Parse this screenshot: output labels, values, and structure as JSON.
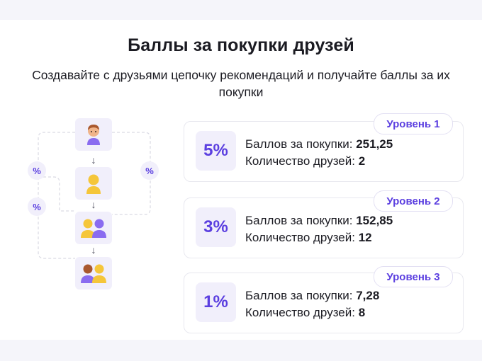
{
  "header": {
    "title": "Баллы за покупки друзей",
    "subtitle": "Создавайте с друзьями цепочку рекомендаций и получайте баллы за их покупки"
  },
  "diagram": {
    "arrow_glyph": "↓",
    "percent_glyph": "%",
    "nodes": [
      "you-avatar-icon",
      "friend-avatar-icon",
      "friends-pair-icon",
      "friends-pair-mixed-icon"
    ]
  },
  "labels": {
    "points_label": "Баллов за покупки:",
    "friends_label": "Количество друзей:"
  },
  "levels": [
    {
      "tag": "Уровень 1",
      "percent": "5%",
      "points": "251,25",
      "friends": "2"
    },
    {
      "tag": "Уровень 2",
      "percent": "3%",
      "points": "152,85",
      "friends": "12"
    },
    {
      "tag": "Уровень 3",
      "percent": "1%",
      "points": "7,28",
      "friends": "8"
    }
  ],
  "colors": {
    "accent": "#5b3fe0",
    "tile_bg": "#f1effb",
    "yellow": "#f5c63a",
    "purple": "#8a6cf0",
    "brown_hair": "#a9582e",
    "skin": "#f0b48a"
  }
}
